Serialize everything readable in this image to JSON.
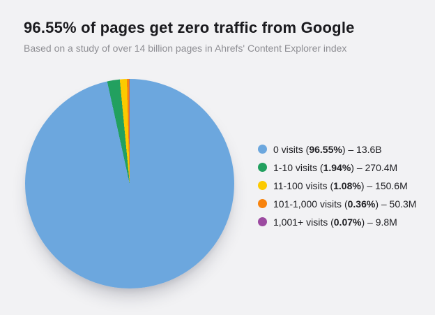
{
  "page": {
    "title": "96.55% of pages get zero traffic from Google",
    "subtitle": "Based on a study of over 14 billion pages in Ahrefs' Content Explorer index",
    "background_color": "#F2F2F4",
    "title_color": "#1A1A1E",
    "subtitle_color": "#8E8E93",
    "legend_text_color": "#202024"
  },
  "chart_data": {
    "type": "pie",
    "title": "96.55% of pages get zero traffic from Google",
    "subtitle": "Based on a study of over 14 billion pages in Ahrefs' Content Explorer index",
    "legend_position": "right",
    "start_angle_deg": 0,
    "direction": "clockwise",
    "legend_format": "{label} ({pct}%) – {count}",
    "slices": [
      {
        "label": "0 visits",
        "pct": 96.55,
        "count": "13.6B",
        "color": "#6CA7DE"
      },
      {
        "label": "1-10 visits",
        "pct": 1.94,
        "count": "270.4M",
        "color": "#22A05F"
      },
      {
        "label": "11-100 visits",
        "pct": 1.08,
        "count": "150.6M",
        "color": "#FCCA00"
      },
      {
        "label": "101-1,000 visits",
        "pct": 0.36,
        "count": "50.3M",
        "color": "#F8830D"
      },
      {
        "label": "1,001+ visits",
        "pct": 0.07,
        "count": "9.8M",
        "color": "#9C4AA0"
      }
    ]
  }
}
